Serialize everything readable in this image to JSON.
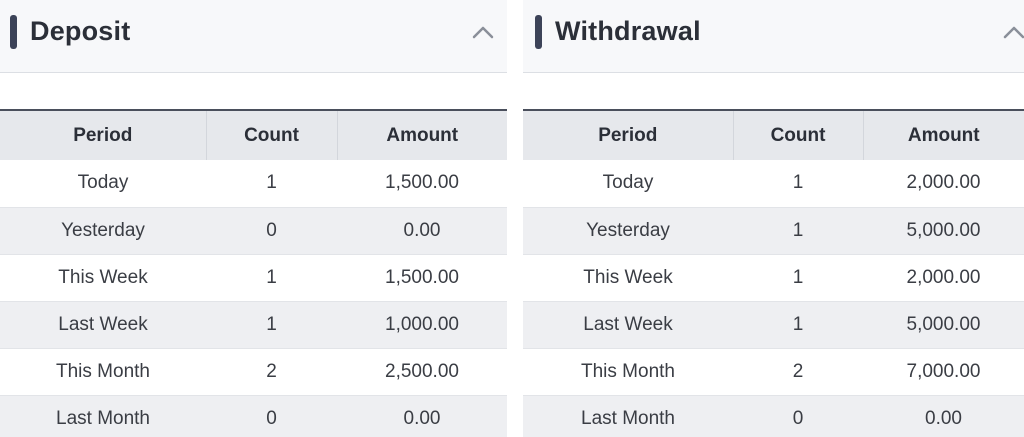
{
  "deposit": {
    "title": "Deposit",
    "collapse_icon": "chevron-up-icon",
    "columns": [
      "Period",
      "Count",
      "Amount"
    ],
    "rows": [
      {
        "period": "Today",
        "count": "1",
        "amount": "1,500.00"
      },
      {
        "period": "Yesterday",
        "count": "0",
        "amount": "0.00"
      },
      {
        "period": "This Week",
        "count": "1",
        "amount": "1,500.00"
      },
      {
        "period": "Last Week",
        "count": "1",
        "amount": "1,000.00"
      },
      {
        "period": "This Month",
        "count": "2",
        "amount": "2,500.00"
      },
      {
        "period": "Last Month",
        "count": "0",
        "amount": "0.00"
      }
    ]
  },
  "withdrawal": {
    "title": "Withdrawal",
    "collapse_icon": "chevron-up-icon",
    "columns": [
      "Period",
      "Count",
      "Amount"
    ],
    "rows": [
      {
        "period": "Today",
        "count": "1",
        "amount": "2,000.00"
      },
      {
        "period": "Yesterday",
        "count": "1",
        "amount": "5,000.00"
      },
      {
        "period": "This Week",
        "count": "1",
        "amount": "2,000.00"
      },
      {
        "period": "Last Week",
        "count": "1",
        "amount": "5,000.00"
      },
      {
        "period": "This Month",
        "count": "2",
        "amount": "7,000.00"
      },
      {
        "period": "Last Month",
        "count": "0",
        "amount": "0.00"
      }
    ]
  },
  "colors": {
    "accent": "#3c4358",
    "header_bg": "#e6e8ec",
    "row_alt_bg": "#eeeff2"
  }
}
